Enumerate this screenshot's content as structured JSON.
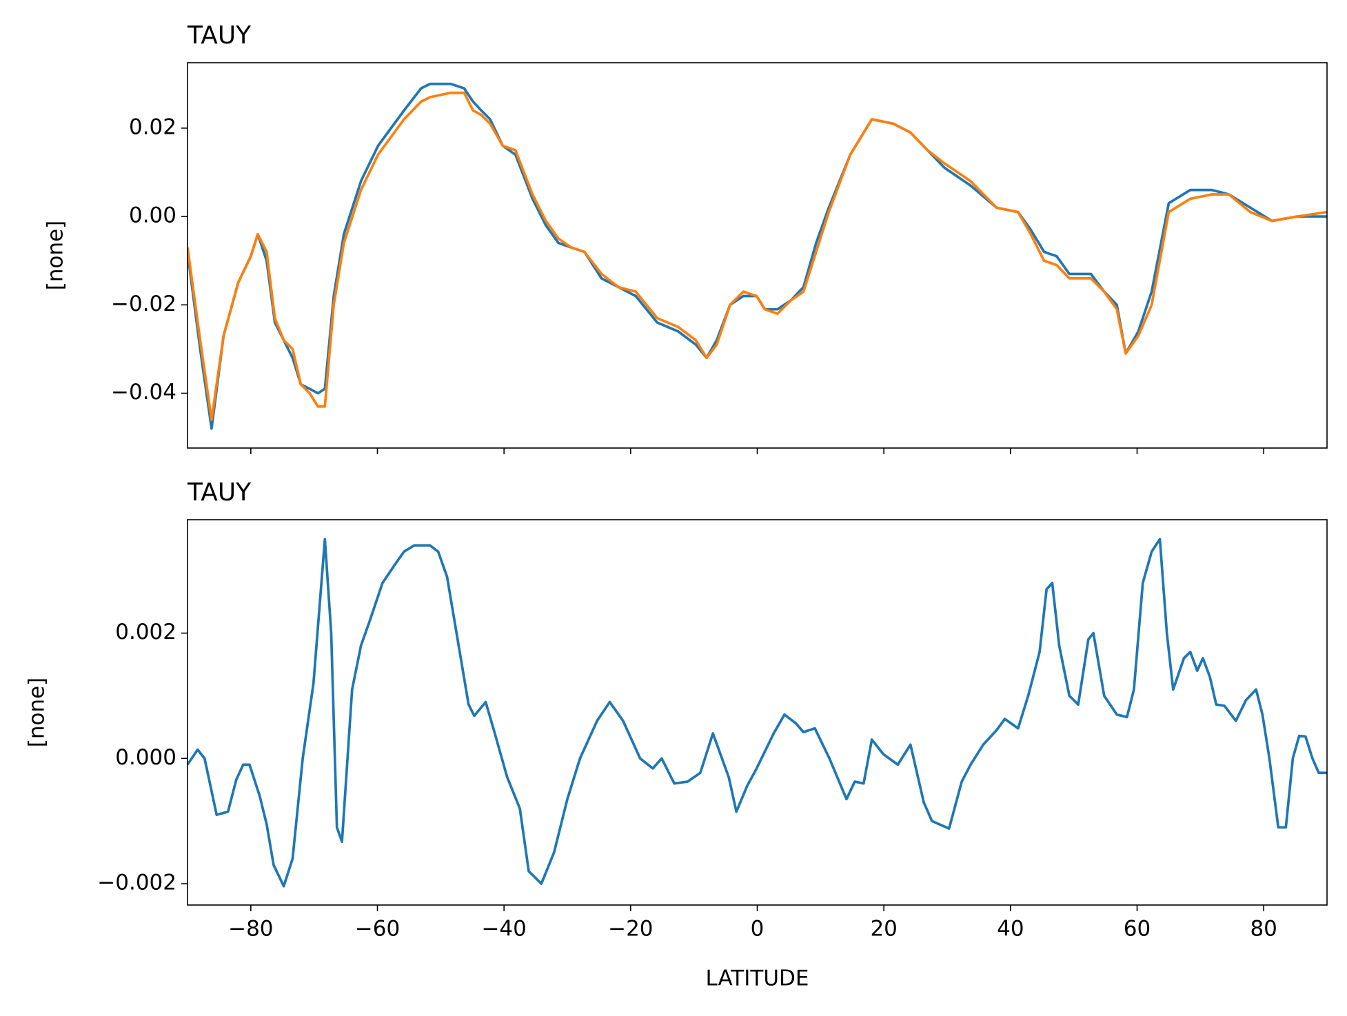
{
  "chart_data": [
    {
      "type": "line",
      "title": "TAUY",
      "ylabel": "[none]",
      "x": [
        -90,
        -88,
        -86.2,
        -84.3,
        -82,
        -80,
        -78.9,
        -77.5,
        -76.2,
        -74.8,
        -73.4,
        -72.1,
        -70.7,
        -69.4,
        -68.3,
        -66.9,
        -65.3,
        -62.6,
        -59.9,
        -55.8,
        -53.1,
        -51.7,
        -48.4,
        -46.3,
        -44.9,
        -43.6,
        -42.2,
        -40.2,
        -38.2,
        -35.5,
        -33.4,
        -31.4,
        -29.4,
        -27.3,
        -24.6,
        -21.9,
        -19.2,
        -15.8,
        -12.5,
        -9.7,
        -8,
        -6.4,
        -4.3,
        -2.2,
        -0.1,
        1.2,
        3.2,
        5.3,
        7.3,
        9.3,
        11.3,
        14.7,
        18.1,
        21.5,
        24.2,
        26.9,
        29.6,
        33.7,
        37.8,
        41.2,
        43.2,
        45.3,
        47.3,
        49.3,
        52.7,
        54.8,
        56.8,
        58.2,
        60.2,
        62.3,
        65,
        68.4,
        71.8,
        74.5,
        77.9,
        81.3,
        85.3,
        90
      ],
      "series": [
        {
          "color": "#1f77b4",
          "values": [
            -0.008,
            -0.03,
            -0.048,
            -0.027,
            -0.015,
            -0.009,
            -0.004,
            -0.01,
            -0.024,
            -0.028,
            -0.032,
            -0.038,
            -0.039,
            -0.04,
            -0.039,
            -0.018,
            -0.004,
            0.008,
            0.016,
            0.024,
            0.029,
            0.03,
            0.03,
            0.029,
            0.026,
            0.024,
            0.022,
            0.016,
            0.014,
            0.004,
            -0.002,
            -0.006,
            -0.007,
            -0.008,
            -0.014,
            -0.016,
            -0.018,
            -0.024,
            -0.026,
            -0.029,
            -0.032,
            -0.028,
            -0.02,
            -0.018,
            -0.018,
            -0.021,
            -0.021,
            -0.019,
            -0.016,
            -0.006,
            0.002,
            0.014,
            0.022,
            0.021,
            0.019,
            0.015,
            0.011,
            0.007,
            0.002,
            0.001,
            -0.003,
            -0.008,
            -0.009,
            -0.013,
            -0.013,
            -0.017,
            -0.02,
            -0.031,
            -0.026,
            -0.017,
            0.003,
            0.006,
            0.006,
            0.005,
            0.002,
            -0.001,
            0,
            0
          ]
        },
        {
          "color": "#ff7f0e",
          "values": [
            -0.007,
            -0.028,
            -0.046,
            -0.027,
            -0.015,
            -0.009,
            -0.004,
            -0.008,
            -0.023,
            -0.028,
            -0.03,
            -0.038,
            -0.04,
            -0.043,
            -0.043,
            -0.02,
            -0.006,
            0.006,
            0.014,
            0.022,
            0.026,
            0.027,
            0.028,
            0.028,
            0.024,
            0.023,
            0.021,
            0.016,
            0.015,
            0.005,
            -0.001,
            -0.005,
            -0.007,
            -0.008,
            -0.013,
            -0.016,
            -0.017,
            -0.023,
            -0.025,
            -0.028,
            -0.032,
            -0.029,
            -0.02,
            -0.017,
            -0.018,
            -0.021,
            -0.022,
            -0.019,
            -0.017,
            -0.008,
            0.001,
            0.014,
            0.022,
            0.021,
            0.019,
            0.015,
            0.012,
            0.008,
            0.002,
            0.001,
            -0.004,
            -0.01,
            -0.011,
            -0.014,
            -0.014,
            -0.017,
            -0.021,
            -0.031,
            -0.027,
            -0.02,
            0.001,
            0.004,
            0.005,
            0.005,
            0.001,
            -0.001,
            0,
            0.001
          ]
        }
      ],
      "xlim": [
        -90,
        90
      ],
      "ylim": [
        -0.0524,
        0.0348
      ],
      "yticks": [
        {
          "value": -0.04,
          "label": "−0.04"
        },
        {
          "value": -0.02,
          "label": "−0.02"
        },
        {
          "value": 0,
          "label": "0.00"
        },
        {
          "value": 0.02,
          "label": "0.02"
        }
      ]
    },
    {
      "type": "line",
      "title": "TAUY",
      "ylabel": "[none]",
      "xlabel": "LATITUDE",
      "x": [
        -90,
        -88.4,
        -87.3,
        -85.4,
        -83.6,
        -82.3,
        -81.2,
        -80.2,
        -78.6,
        -77.5,
        -76.4,
        -74.8,
        -73.4,
        -71.8,
        -70.1,
        -68.3,
        -67.3,
        -66.4,
        -65.6,
        -64,
        -62.6,
        -61.2,
        -59.2,
        -57.2,
        -55.8,
        -54.2,
        -51.7,
        -50.4,
        -49,
        -47,
        -45.6,
        -44.7,
        -42.9,
        -41.6,
        -39.5,
        -37.5,
        -36.1,
        -34.1,
        -32.1,
        -30,
        -28,
        -25.3,
        -23.3,
        -21.2,
        -18.5,
        -16.5,
        -15.1,
        -13.1,
        -11,
        -9,
        -7,
        -4.5,
        -3.3,
        -1.6,
        -0.1,
        2.6,
        4.3,
        6.1,
        7.3,
        9.1,
        11.4,
        14.1,
        15.4,
        16.8,
        18.1,
        19.9,
        22.2,
        24.2,
        26.3,
        27.6,
        30.3,
        32.3,
        33.7,
        35.7,
        37.8,
        39.1,
        41.2,
        42.8,
        44.6,
        45.7,
        46.6,
        47.7,
        49.3,
        50.7,
        52.3,
        53.1,
        54.8,
        56.8,
        58.4,
        59.5,
        60.9,
        62.3,
        63.6,
        64.7,
        65.7,
        67.4,
        68.4,
        69.5,
        70.4,
        71.5,
        72.5,
        73.8,
        75.6,
        77.2,
        78.8,
        79.8,
        80.9,
        82.3,
        83.5,
        84.6,
        85.6,
        86.6,
        87.7,
        88.7,
        90
      ],
      "color": "#1f77b4",
      "values": [
        -0.0001,
        0.00014,
        0,
        -0.0009,
        -0.00085,
        -0.00034,
        -0.0001,
        -0.0001,
        -0.0006,
        -0.00105,
        -0.0017,
        -0.00204,
        -0.0016,
        0,
        0.0012,
        0.0035,
        0.002,
        -0.0011,
        -0.00133,
        0.0011,
        0.0018,
        0.0022,
        0.0028,
        0.0031,
        0.0033,
        0.0034,
        0.0034,
        0.0033,
        0.0029,
        0.0017,
        0.00086,
        0.00068,
        0.0009,
        0.00045,
        -0.0003,
        -0.0008,
        -0.0018,
        -0.002,
        -0.0015,
        -0.00065,
        0,
        0.0006,
        0.0009,
        0.0006,
        0,
        -0.00016,
        0,
        -0.0004,
        -0.00037,
        -0.00023,
        0.0004,
        -0.0003,
        -0.00085,
        -0.00044,
        -0.00016,
        0.0004,
        0.0007,
        0.00056,
        0.00042,
        0.00048,
        0,
        -0.00065,
        -0.00037,
        -0.0004,
        0.0003,
        7e-05,
        -0.0001,
        0.00022,
        -0.0007,
        -0.001,
        -0.00112,
        -0.00037,
        -0.0001,
        0.00022,
        0.00045,
        0.00063,
        0.00048,
        0.001,
        0.0017,
        0.0027,
        0.0028,
        0.0018,
        0.001,
        0.00086,
        0.0019,
        0.002,
        0.001,
        0.0007,
        0.00066,
        0.0011,
        0.0028,
        0.0033,
        0.0035,
        0.002,
        0.0011,
        0.0016,
        0.0017,
        0.0014,
        0.0016,
        0.0013,
        0.00086,
        0.00084,
        0.0006,
        0.00093,
        0.0011,
        0.0007,
        0,
        -0.0011,
        -0.0011,
        0,
        0.00036,
        0.00035,
        0,
        -0.00023,
        -0.00023
      ],
      "xlim": [
        -90,
        90
      ],
      "ylim": [
        -0.00234,
        0.00381
      ],
      "xticks": [
        {
          "value": -80,
          "label": "−80"
        },
        {
          "value": -60,
          "label": "−60"
        },
        {
          "value": -40,
          "label": "−40"
        },
        {
          "value": -20,
          "label": "−20"
        },
        0,
        20,
        40,
        60,
        80
      ],
      "yticks": [
        {
          "value": -0.002,
          "label": "−0.002"
        },
        {
          "value": 0,
          "label": "0.000"
        },
        {
          "value": 0.002,
          "label": "0.002"
        }
      ]
    }
  ]
}
